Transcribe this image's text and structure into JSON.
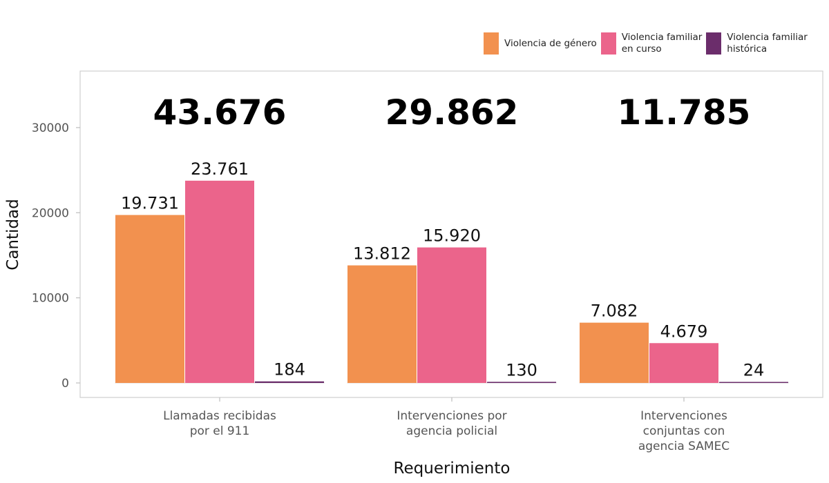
{
  "chart_data": {
    "type": "bar",
    "xlabel": "Requerimiento",
    "ylabel": "Cantidad",
    "ylim": [
      0,
      36000
    ],
    "yticks": [
      0,
      10000,
      20000,
      30000
    ],
    "ytick_labels": [
      "0",
      "10000",
      "20000",
      "30000"
    ],
    "grid": false,
    "legend_position": "top-right",
    "categories": [
      "Llamadas recibidas\npor el 911",
      "Intervenciones por\nagencia policial",
      "Intervenciones\nconjuntas con\nagencia SAMEC"
    ],
    "totals": [
      "43.676",
      "29.862",
      "11.785"
    ],
    "series": [
      {
        "name": "Violencia de género",
        "color": "#F2914F",
        "values": [
          19731,
          13812,
          7082
        ],
        "labels": [
          "19.731",
          "13.812",
          "7.082"
        ]
      },
      {
        "name": "Violencia familiar\nen curso",
        "color": "#EB648B",
        "values": [
          23761,
          15920,
          4679
        ],
        "labels": [
          "23.761",
          "15.920",
          "4.679"
        ]
      },
      {
        "name": "Violencia familiar\nhistórica",
        "color": "#6B2D6B",
        "values": [
          184,
          130,
          24
        ],
        "labels": [
          "184",
          "130",
          "24"
        ]
      }
    ]
  }
}
